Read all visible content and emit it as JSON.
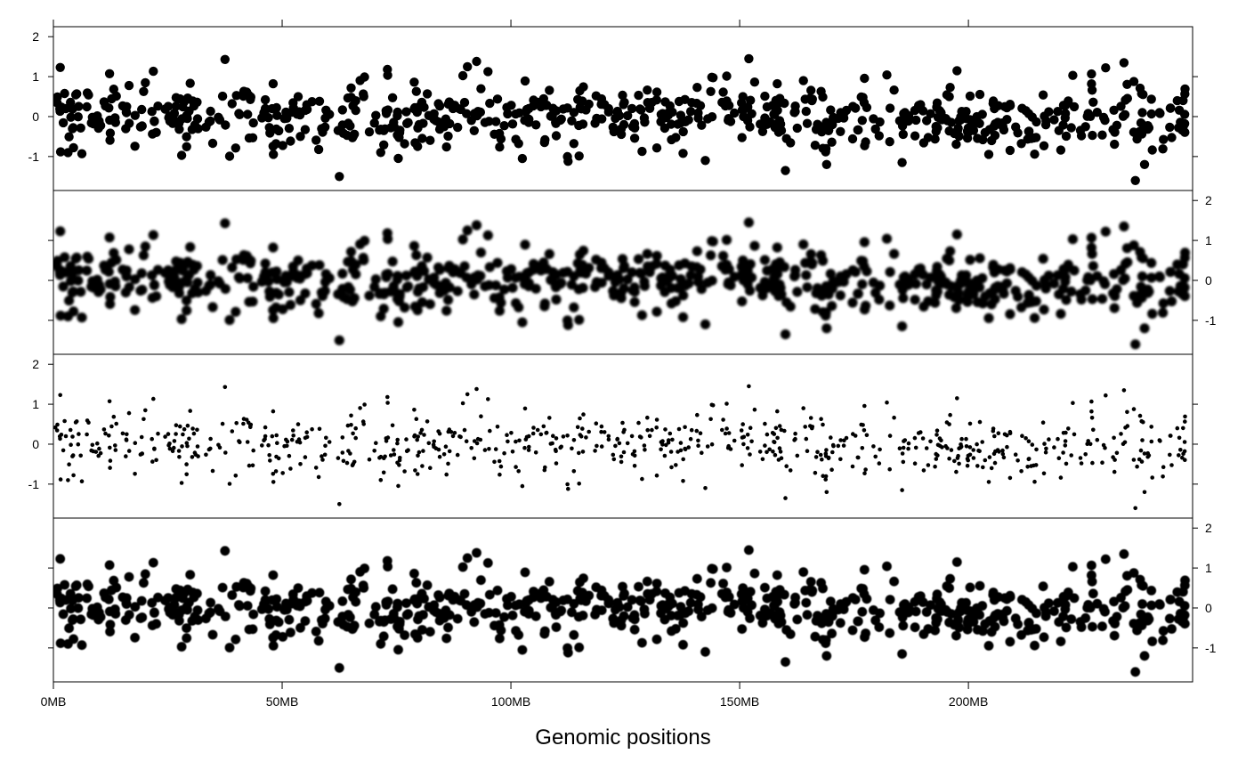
{
  "chart_data": {
    "type": "scatter",
    "xlabel": "Genomic positions",
    "x_ticks": [
      {
        "value": 0,
        "label": "0MB"
      },
      {
        "value": 50,
        "label": "50MB"
      },
      {
        "value": 100,
        "label": "100MB"
      },
      {
        "value": 150,
        "label": "150MB"
      },
      {
        "value": 200,
        "label": "200MB"
      }
    ],
    "xlim": [
      0,
      249
    ],
    "ylim": [
      -1.85,
      2.25
    ],
    "y_ticks": [
      {
        "value": -1,
        "label": "-1"
      },
      {
        "value": 0,
        "label": "0"
      },
      {
        "value": 1,
        "label": "1"
      },
      {
        "value": 2,
        "label": "2"
      }
    ],
    "panels": [
      {
        "y_axis_side": "left",
        "marker": "large-filled-circle"
      },
      {
        "y_axis_side": "right",
        "marker": "large-blurred-circle"
      },
      {
        "y_axis_side": "left",
        "marker": "small-dot"
      },
      {
        "y_axis_side": "right",
        "marker": "large-soft-circle"
      }
    ],
    "points": {
      "note_count": 700,
      "highlighted": [
        {
          "x": 1.5,
          "y": 1.23
        },
        {
          "x": 3.2,
          "y": -0.9
        },
        {
          "x": 37.5,
          "y": 1.43
        },
        {
          "x": 62.5,
          "y": -1.5
        },
        {
          "x": 73.0,
          "y": 1.18
        },
        {
          "x": 90.5,
          "y": 1.25
        },
        {
          "x": 92.5,
          "y": 1.38
        },
        {
          "x": 102.5,
          "y": -1.05
        },
        {
          "x": 112.5,
          "y": -1.12
        },
        {
          "x": 142.5,
          "y": -1.1
        },
        {
          "x": 152.0,
          "y": 1.45
        },
        {
          "x": 160.0,
          "y": -1.35
        },
        {
          "x": 169.0,
          "y": -1.2
        },
        {
          "x": 185.5,
          "y": -1.15
        },
        {
          "x": 197.5,
          "y": 1.15
        },
        {
          "x": 230.0,
          "y": 1.22
        },
        {
          "x": 234.0,
          "y": 1.35
        },
        {
          "x": 236.5,
          "y": -1.6
        },
        {
          "x": 238.5,
          "y": -1.2
        }
      ]
    }
  }
}
